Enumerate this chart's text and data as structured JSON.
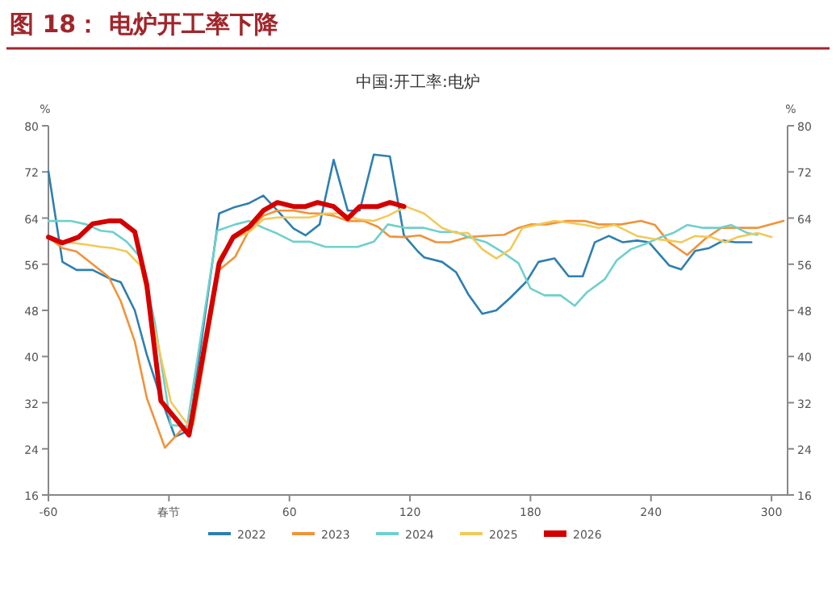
{
  "chart_data": {
    "type": "line",
    "title": "图 18：  电炉开工率下降",
    "subtitle": "中国:开工率:电炉",
    "ylabel": "%",
    "y2label": "%",
    "xlim": [
      -60,
      308
    ],
    "xticks": [
      -60,
      {
        "value": 0,
        "label": "春节"
      },
      60,
      120,
      180,
      240,
      300
    ],
    "ylim": [
      16,
      80
    ],
    "yticks": [
      16,
      24,
      32,
      40,
      48,
      56,
      64,
      72,
      80
    ],
    "y2lim": [
      16,
      80
    ],
    "y2ticks": [
      16,
      24,
      32,
      40,
      48,
      56,
      64,
      72,
      80
    ],
    "legend": "bottom",
    "grid": false,
    "series": [
      {
        "name": "2022",
        "color": "#2e7fb0",
        "x": [
          -60,
          -53,
          -46,
          -38,
          -30,
          -24,
          -17,
          -11,
          -4,
          3,
          10,
          25,
          32,
          40,
          47,
          54,
          62,
          68,
          75,
          82,
          89,
          95,
          102,
          110,
          117,
          124,
          127,
          136,
          143,
          149,
          156,
          163,
          170,
          178,
          184,
          192,
          199,
          206,
          212,
          219,
          226,
          233,
          239,
          249,
          255,
          262,
          269,
          276,
          282,
          290
        ],
        "values": [
          72.1,
          56.4,
          55,
          55,
          53.6,
          52.9,
          48,
          40.3,
          32.8,
          26.1,
          27.2,
          64.8,
          65.8,
          66.6,
          67.9,
          65.3,
          62.2,
          61,
          62.9,
          74.1,
          65.3,
          65.3,
          75,
          74.7,
          61,
          58.2,
          57.2,
          56.4,
          54.6,
          50.8,
          47.4,
          48,
          50.2,
          53,
          56.4,
          57,
          53.9,
          53.9,
          59.8,
          60.9,
          59.8,
          60.1,
          59.8,
          55.8,
          55.1,
          58.3,
          58.8,
          60.1,
          59.8,
          59.8
        ]
      },
      {
        "name": "2023",
        "color": "#f0933a",
        "x": [
          -60,
          -53,
          -46,
          -38,
          -30,
          -24,
          -17,
          -11,
          -2,
          6,
          12,
          25,
          33,
          40,
          47,
          54,
          62,
          70,
          75,
          82,
          89,
          97,
          104,
          110,
          117,
          125,
          133,
          140,
          149,
          156,
          167,
          174,
          180,
          188,
          198,
          207,
          214,
          225,
          235,
          242,
          249,
          258,
          267,
          275,
          283,
          293,
          306
        ],
        "values": [
          60.7,
          58.8,
          58.2,
          56,
          53.8,
          49.6,
          42.6,
          32.8,
          24.2,
          27.2,
          28.1,
          55,
          57.3,
          62,
          64.4,
          65.3,
          65.3,
          64.8,
          64.8,
          64.4,
          63.5,
          63.5,
          62.5,
          60.8,
          60.7,
          61,
          59.8,
          59.8,
          60.7,
          60.9,
          61.1,
          62.3,
          62.9,
          62.9,
          63.5,
          63.5,
          62.9,
          62.9,
          63.5,
          62.8,
          59.8,
          57.6,
          60.4,
          62.3,
          62.3,
          62.3,
          63.5
        ]
      },
      {
        "name": "2024",
        "color": "#6fd0cc",
        "x": [
          -60,
          -49,
          -41,
          -34,
          -28,
          -21,
          -14,
          -7,
          1,
          9,
          24,
          33,
          40,
          47,
          54,
          62,
          70,
          78,
          86,
          94,
          102,
          109,
          118,
          127,
          135,
          143,
          149,
          158,
          166,
          174,
          180,
          187,
          195,
          202,
          208,
          217,
          223,
          230,
          237,
          245,
          251,
          258,
          266,
          274,
          280,
          288,
          293
        ],
        "values": [
          63.5,
          63.5,
          62.9,
          61.8,
          61.6,
          59.9,
          57.1,
          45.9,
          28.1,
          27.9,
          61.8,
          62.9,
          63.5,
          62.3,
          61.3,
          59.9,
          59.9,
          59,
          59,
          59,
          59.9,
          62.9,
          62.3,
          62.3,
          61.6,
          61.6,
          60.7,
          59.8,
          58.1,
          56.2,
          51.8,
          50.6,
          50.6,
          48.8,
          51.1,
          53.4,
          56.7,
          58.6,
          59.5,
          60.7,
          61.4,
          62.8,
          62.3,
          62.3,
          62.8,
          61.4,
          61.1
        ]
      },
      {
        "name": "2025",
        "color": "#f2c95a",
        "x": [
          -60,
          -52,
          -41,
          -34,
          -28,
          -21,
          -14,
          -7,
          1,
          10,
          25,
          32,
          40,
          47,
          54,
          62,
          70,
          78,
          86,
          94,
          102,
          109,
          118,
          127,
          136,
          143,
          149,
          156,
          163,
          170,
          176,
          184,
          192,
          199,
          207,
          214,
          222,
          233,
          241,
          249,
          255,
          262,
          270,
          277,
          283,
          293,
          300
        ],
        "values": [
          60.7,
          59.9,
          59.4,
          59,
          58.8,
          58.2,
          55.7,
          44.5,
          32.1,
          27.9,
          57.1,
          60.4,
          61.6,
          63.8,
          64.1,
          64.1,
          64.1,
          64.8,
          64.8,
          63.8,
          63.5,
          64.4,
          66,
          64.8,
          62.3,
          61.4,
          61.4,
          58.6,
          57,
          58.6,
          62.3,
          62.9,
          63.5,
          63.2,
          62.8,
          62.3,
          62.8,
          60.9,
          60.4,
          60.1,
          59.8,
          60.9,
          60.7,
          59.8,
          60.7,
          61.4,
          60.7
        ]
      },
      {
        "name": "2026",
        "color": "#d40000",
        "x": [
          -60,
          -53,
          -45,
          -38,
          -30,
          -24,
          -17,
          -11,
          -4,
          10,
          25,
          32,
          40,
          47,
          54,
          62,
          68,
          74,
          82,
          89,
          95,
          104,
          110,
          117
        ],
        "values": [
          60.7,
          59.7,
          60.7,
          63,
          63.5,
          63.5,
          61.6,
          52.4,
          32.3,
          26.4,
          56.2,
          60.7,
          62.5,
          65.3,
          66.7,
          66,
          66,
          66.7,
          66,
          63.9,
          66,
          66,
          66.7,
          66
        ]
      }
    ]
  }
}
